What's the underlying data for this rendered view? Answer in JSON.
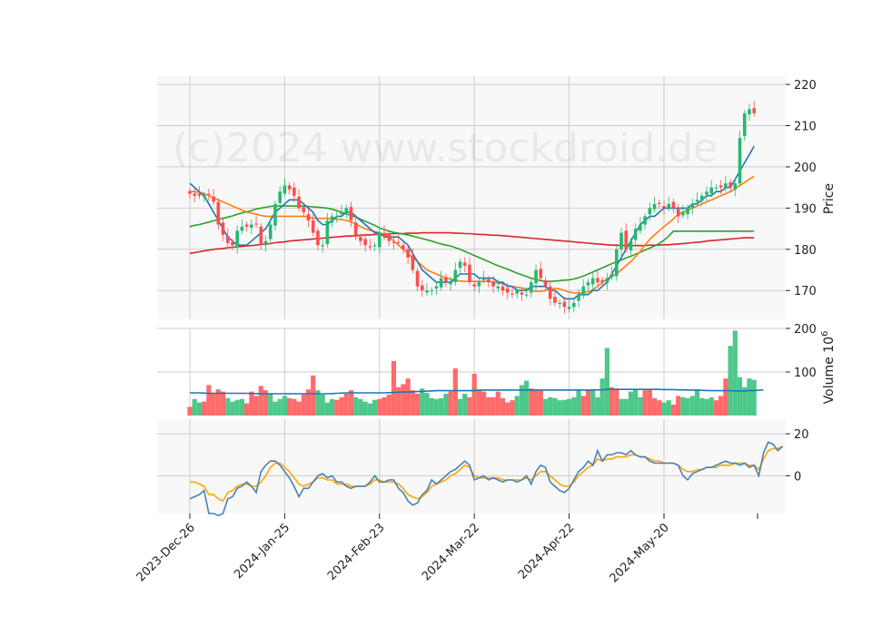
{
  "chart_data": {
    "type": "candlestick",
    "watermark": "(c)2024 www.stockdroid.de",
    "x_ticks": [
      "2023-Dec-26",
      "2024-Jan-25",
      "2024-Feb-23",
      "2024-Mar-22",
      "2024-Apr-22",
      "2024-May-20"
    ],
    "x_tick_index": [
      0,
      20,
      40,
      60,
      80,
      100
    ],
    "num_days": 120,
    "price_panel": {
      "ylabel": "Price",
      "ylim": [
        163,
        222
      ],
      "yticks": [
        170,
        180,
        190,
        200,
        210,
        220
      ],
      "close": [
        193.5,
        193,
        193,
        193.2,
        193.3,
        191.5,
        186,
        183.5,
        181.5,
        181,
        184.5,
        185.5,
        185.5,
        186,
        186,
        181,
        182,
        186,
        191,
        194,
        195.5,
        194.5,
        193,
        190,
        189,
        187,
        184,
        181,
        181,
        187,
        188,
        188,
        189,
        190,
        187,
        183,
        182,
        181,
        180.5,
        181,
        184,
        183,
        182,
        181.5,
        181.5,
        180,
        178,
        175,
        171,
        170,
        170,
        170,
        171,
        173,
        172,
        172,
        175,
        177,
        176,
        172,
        171,
        172,
        173,
        172,
        171,
        171,
        170,
        169.5,
        169,
        170,
        169,
        169,
        172,
        175,
        173,
        171,
        168,
        167,
        167,
        166,
        166,
        167,
        169,
        171,
        172,
        173,
        172,
        172,
        173,
        174,
        180,
        184,
        180,
        182,
        185,
        186,
        188,
        190,
        191,
        191,
        190,
        191,
        190,
        188,
        189,
        190,
        191,
        192,
        193,
        194,
        195,
        195,
        195,
        196,
        195,
        196,
        207,
        213,
        214,
        213,
        216
      ],
      "colors": {
        "up": "#26b870",
        "down": "#ff4d4d"
      },
      "ma_fast": [
        196,
        195,
        194,
        193,
        191,
        189,
        187,
        185,
        183,
        182,
        181,
        181,
        181,
        182,
        183,
        184,
        185,
        187,
        189,
        190,
        191,
        192,
        192,
        192,
        191,
        190,
        189,
        187,
        186,
        186,
        187,
        188,
        188,
        189,
        189,
        188,
        187,
        186,
        185,
        184,
        184,
        183,
        183,
        183,
        183,
        182,
        181,
        179,
        177,
        175,
        174,
        173,
        172,
        172,
        172,
        172,
        173,
        174,
        174,
        174,
        174,
        173,
        173,
        173,
        173,
        172,
        172,
        171,
        171,
        170,
        170,
        170,
        171,
        171,
        171,
        171,
        170,
        170,
        169,
        168,
        168,
        168,
        169,
        169,
        169,
        170,
        170,
        171,
        172,
        174,
        176,
        178,
        180,
        182,
        184,
        186,
        187,
        188,
        188,
        189,
        190,
        190,
        190,
        190,
        190,
        190,
        191,
        191,
        192,
        193,
        193,
        194,
        194,
        195,
        195,
        197,
        199,
        201,
        203,
        205
      ],
      "ma_mid": [
        194,
        194,
        193.8,
        193.5,
        193,
        192.5,
        192,
        191.5,
        191,
        190.5,
        190,
        189.5,
        189,
        188.8,
        188.5,
        188.2,
        188,
        188,
        188,
        188,
        188,
        188,
        188,
        188,
        188,
        187.8,
        187.5,
        187.5,
        187.5,
        187.5,
        187.4,
        187.3,
        187.2,
        187,
        186.6,
        186.2,
        185.5,
        185,
        184.6,
        184.3,
        184,
        183.6,
        183,
        182,
        181,
        180,
        179,
        178,
        177,
        176,
        175,
        174.5,
        174,
        173.5,
        173,
        172.8,
        172.5,
        172.3,
        172.2,
        172.2,
        172.2,
        172.2,
        172.2,
        172.2,
        172,
        171.8,
        171.6,
        171.2,
        171,
        170.8,
        170.6,
        170.4,
        170,
        169.8,
        169.8,
        170,
        170.4,
        170.5,
        170.4,
        170,
        169.6,
        169.4,
        169.4,
        169.5,
        169.7,
        170.2,
        171,
        172,
        172.8,
        173.4,
        174,
        175,
        176,
        177,
        178.2,
        179.5,
        181,
        182.4,
        183.5,
        184.5,
        185.5,
        186.4,
        187.4,
        188.5,
        189,
        189.5,
        190,
        190.5,
        191,
        191.5,
        192,
        192.5,
        193,
        193.5,
        194,
        194.7,
        195.5,
        196.2,
        197,
        197.7
      ],
      "ma_slow": [
        185.5,
        185.8,
        186,
        186.3,
        186.6,
        186.9,
        187.2,
        187.5,
        187.8,
        188.1,
        188.5,
        188.8,
        189.1,
        189.4,
        189.8,
        190,
        190.2,
        190.4,
        190.5,
        190.5,
        190.5,
        190.5,
        190.5,
        190.5,
        190.5,
        190.4,
        190.3,
        190.2,
        190.1,
        190,
        189.7,
        189.4,
        189,
        188.6,
        188.2,
        187.8,
        187.3,
        186.8,
        186.3,
        185.8,
        185.2,
        184.8,
        184.4,
        184.1,
        183.9,
        183.7,
        183.5,
        183.2,
        182.9,
        182.6,
        182.3,
        182,
        181.6,
        181.3,
        181,
        180.8,
        180.4,
        180,
        179.5,
        179,
        178.5,
        178,
        177.5,
        177,
        176.5,
        176,
        175.6,
        175.2,
        174.7,
        174.2,
        173.8,
        173.4,
        173,
        172.7,
        172.4,
        172.2,
        172.2,
        172.3,
        172.4,
        172.5,
        172.6,
        172.8,
        173.1,
        173.5,
        174,
        174.5,
        175,
        175.5,
        176,
        176.5,
        177,
        177.4,
        177.9,
        178.3,
        178.8,
        179.3,
        179.8,
        180.3,
        180.8,
        181.4,
        182.2,
        183.2,
        184.4,
        184.4,
        184.4,
        184.4,
        184.4,
        184.4,
        184.4,
        184.4,
        184.4,
        184.4,
        184.4,
        184.4,
        184.4,
        184.4,
        184.4,
        184.4,
        184.4,
        184.4
      ],
      "ma_long": [
        179,
        179.2,
        179.4,
        179.6,
        179.8,
        180,
        180.1,
        180.2,
        180.4,
        180.5,
        180.6,
        180.7,
        180.8,
        180.9,
        181,
        181.2,
        181.3,
        181.4,
        181.6,
        181.7,
        181.8,
        182,
        182.1,
        182.2,
        182.3,
        182.4,
        182.5,
        182.6,
        182.7,
        182.8,
        182.9,
        183,
        183.1,
        183.2,
        183.2,
        183.3,
        183.4,
        183.5,
        183.5,
        183.6,
        183.6,
        183.7,
        183.7,
        183.8,
        183.8,
        183.8,
        183.9,
        183.9,
        183.9,
        184,
        184,
        184,
        184,
        184,
        184,
        184,
        183.9,
        183.9,
        183.8,
        183.8,
        183.7,
        183.6,
        183.6,
        183.5,
        183.4,
        183.4,
        183.3,
        183.2,
        183.1,
        183,
        182.9,
        182.8,
        182.7,
        182.6,
        182.5,
        182.4,
        182.3,
        182.2,
        182.1,
        182,
        181.9,
        181.8,
        181.7,
        181.6,
        181.5,
        181.4,
        181.3,
        181.2,
        181.1,
        181,
        181,
        180.9,
        180.9,
        180.9,
        180.9,
        180.9,
        180.9,
        181,
        181,
        181,
        181.1,
        181.1,
        181.2,
        181.3,
        181.4,
        181.5,
        181.6,
        181.7,
        181.8,
        182,
        182.1,
        182.2,
        182.3,
        182.4,
        182.5,
        182.6,
        182.7,
        182.8,
        182.8,
        182.8
      ]
    },
    "volume_panel": {
      "ylabel": "Volume  10^6",
      "ylim": [
        0,
        200
      ],
      "yticks": [
        100,
        200
      ],
      "volume": [
        20,
        38,
        30,
        32,
        70,
        50,
        60,
        55,
        40,
        32,
        36,
        38,
        28,
        55,
        45,
        68,
        58,
        50,
        32,
        38,
        45,
        40,
        38,
        32,
        48,
        60,
        92,
        58,
        48,
        30,
        38,
        36,
        42,
        50,
        58,
        42,
        38,
        32,
        28,
        36,
        38,
        42,
        48,
        125,
        65,
        72,
        85,
        58,
        50,
        62,
        52,
        40,
        38,
        40,
        50,
        55,
        108,
        38,
        50,
        42,
        96,
        60,
        55,
        42,
        42,
        55,
        40,
        30,
        35,
        45,
        70,
        80,
        62,
        60,
        58,
        38,
        42,
        40,
        35,
        36,
        38,
        42,
        58,
        45,
        58,
        60,
        42,
        85,
        155,
        65,
        62,
        38,
        38,
        55,
        60,
        42,
        58,
        60,
        40,
        35,
        30,
        35,
        25,
        45,
        42,
        40,
        45,
        60,
        40,
        38,
        42,
        35,
        45,
        85,
        160,
        195,
        88,
        65,
        85,
        82
      ],
      "up_flags": [
        0,
        1,
        1,
        0,
        0,
        0,
        0,
        0,
        1,
        1,
        1,
        1,
        0,
        0,
        0,
        0,
        0,
        1,
        1,
        1,
        1,
        0,
        0,
        0,
        0,
        0,
        0,
        1,
        1,
        1,
        1,
        0,
        0,
        0,
        0,
        1,
        1,
        1,
        1,
        1,
        0,
        0,
        0,
        0,
        0,
        0,
        0,
        0,
        0,
        1,
        1,
        1,
        1,
        1,
        1,
        0,
        0,
        1,
        1,
        0,
        0,
        0,
        0,
        0,
        0,
        0,
        0,
        0,
        0,
        1,
        1,
        1,
        0,
        0,
        0,
        1,
        1,
        1,
        1,
        1,
        1,
        1,
        1,
        0,
        0,
        1,
        1,
        1,
        1,
        0,
        0,
        1,
        1,
        1,
        1,
        1,
        0,
        0,
        0,
        0,
        1,
        1,
        0,
        0,
        1,
        1,
        1,
        1,
        1,
        1,
        1,
        0,
        0,
        0,
        1,
        1,
        1,
        1,
        1,
        1
      ],
      "ma": [
        52,
        52,
        52,
        51.5,
        51,
        51,
        51,
        51,
        51,
        51,
        51,
        51,
        51,
        50.5,
        50.5,
        50,
        50,
        50,
        50,
        50,
        50,
        50,
        50,
        50,
        50,
        50,
        50,
        50,
        50,
        50,
        50.5,
        51,
        51.5,
        52,
        52,
        52,
        52,
        52,
        52,
        52,
        52,
        52,
        52.5,
        53,
        53.5,
        54,
        54,
        54.5,
        55,
        55.5,
        56,
        56.5,
        57,
        57,
        57,
        57,
        57,
        57,
        57,
        57,
        57.5,
        58,
        58.5,
        58.5,
        58.5,
        58.5,
        58.5,
        58.5,
        58.5,
        58.5,
        58.5,
        58.5,
        58.5,
        58.5,
        58.5,
        58.5,
        58.5,
        58.5,
        58.5,
        58.5,
        58.5,
        58.5,
        58.5,
        58.5,
        58.5,
        58.5,
        59,
        59,
        60,
        60,
        60,
        60,
        60,
        60,
        60,
        60,
        60,
        60,
        60,
        60,
        59.5,
        59.5,
        59.5,
        59,
        59,
        58.5,
        58.5,
        58,
        58,
        57.5,
        57,
        57,
        57,
        57,
        57,
        56.5,
        56.5,
        56.5,
        57,
        57.5,
        58,
        59
      ]
    },
    "oscillator_panel": {
      "ylim": [
        -18,
        27
      ],
      "yticks": [
        0,
        20
      ],
      "line1": [
        -11,
        -10,
        -9,
        -7,
        -18,
        -18,
        -19,
        -18,
        -11,
        -10,
        -6,
        -5,
        -3,
        -5,
        -8,
        2,
        5,
        7,
        7,
        5,
        2,
        -1,
        -5,
        -10,
        -6,
        -6,
        -3,
        0,
        1,
        -1,
        0,
        -3,
        -3,
        -5,
        -6,
        -5,
        -5,
        -5,
        -3,
        0,
        -3,
        -3,
        -2,
        -2,
        -6,
        -8,
        -12,
        -14,
        -13,
        -9,
        -7,
        -2,
        -4,
        -2,
        0,
        2,
        3,
        5,
        7,
        5,
        -2,
        -1,
        0,
        -2,
        -1,
        -2,
        -3,
        -2,
        -2,
        -3,
        -2,
        0,
        -4,
        2,
        5,
        4,
        -3,
        -5,
        -7,
        -8,
        -6,
        -2,
        2,
        4,
        7,
        5,
        12,
        7,
        10,
        10,
        11,
        11,
        10,
        12,
        10,
        9,
        9,
        7,
        6,
        6,
        6,
        6,
        6,
        5,
        0,
        -2,
        1,
        2,
        3,
        4,
        4,
        5,
        6,
        7,
        6,
        6,
        5,
        6,
        4,
        5,
        0,
        11,
        16,
        15,
        12,
        14
      ],
      "line2": [
        -3,
        -3,
        -4,
        -5,
        -9,
        -9,
        -11,
        -12,
        -8,
        -7,
        -5,
        -4,
        -4,
        -5,
        -5,
        -3,
        0,
        4,
        6,
        6,
        4,
        2,
        -1,
        -4,
        -5,
        -4,
        -3,
        -1,
        -1,
        -2,
        -2,
        -4,
        -4,
        -4,
        -5,
        -5,
        -5,
        -5,
        -4,
        -2,
        -2,
        -3,
        -3,
        -3,
        -4,
        -6,
        -9,
        -10,
        -11,
        -10,
        -8,
        -5,
        -4,
        -3,
        -2,
        0,
        1,
        3,
        5,
        4,
        0,
        -1,
        -1,
        -1,
        -1,
        -1,
        -2,
        -2,
        -2,
        -2,
        -2,
        -1,
        -2,
        0,
        2,
        2,
        0,
        -2,
        -4,
        -5,
        -5,
        -3,
        0,
        2,
        4,
        5,
        8,
        7,
        8,
        8,
        9,
        9,
        9,
        10,
        10,
        9,
        9,
        8,
        7,
        7,
        6,
        6,
        6,
        5,
        3,
        2,
        2,
        3,
        3,
        4,
        4,
        4,
        5,
        5,
        5,
        6,
        6,
        6,
        5,
        5,
        3,
        8,
        12,
        13,
        13,
        14
      ]
    }
  },
  "colors": {
    "ma_fast": "#1f77b4",
    "ma_mid": "#ff7f0e",
    "ma_slow": "#2ca02c",
    "ma_long": "#d62728",
    "volume_ma": "#1f77b4",
    "osc_line1": "#4682b4",
    "osc_line2": "#ffa500",
    "panel_bg": "#f8f8f8",
    "grid": "#cccccc"
  }
}
